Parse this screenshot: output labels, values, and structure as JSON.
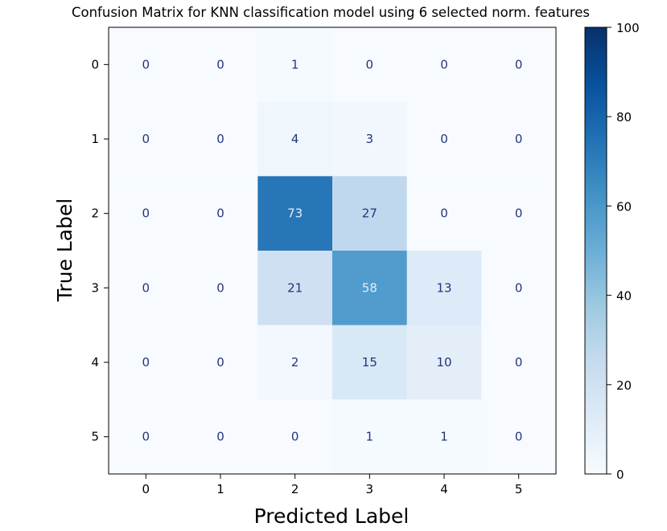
{
  "chart_data": {
    "type": "heatmap",
    "title": "Confusion Matrix for KNN classification model using 6 selected norm. features",
    "xlabel": "Predicted Label",
    "ylabel": "True Label",
    "x_categories": [
      "0",
      "1",
      "2",
      "3",
      "4",
      "5"
    ],
    "y_categories": [
      "0",
      "1",
      "2",
      "3",
      "4",
      "5"
    ],
    "matrix": [
      [
        0,
        0,
        1,
        0,
        0,
        0
      ],
      [
        0,
        0,
        4,
        3,
        0,
        0
      ],
      [
        0,
        0,
        73,
        27,
        0,
        0
      ],
      [
        0,
        0,
        21,
        58,
        13,
        0
      ],
      [
        0,
        0,
        2,
        15,
        10,
        0
      ],
      [
        0,
        0,
        0,
        1,
        1,
        0
      ]
    ],
    "colorbar": {
      "range": [
        0,
        100
      ],
      "ticks": [
        "0",
        "20",
        "40",
        "60",
        "80",
        "100"
      ],
      "colormap": "Blues",
      "colors": [
        "#f7fbff",
        "#deebf7",
        "#c6dbef",
        "#9ecae1",
        "#6baed6",
        "#4292c6",
        "#2171b5",
        "#08519c",
        "#08306b"
      ]
    },
    "text_colors": {
      "dark": "#26357a",
      "light": "#e6ecf5"
    },
    "grid": false
  }
}
